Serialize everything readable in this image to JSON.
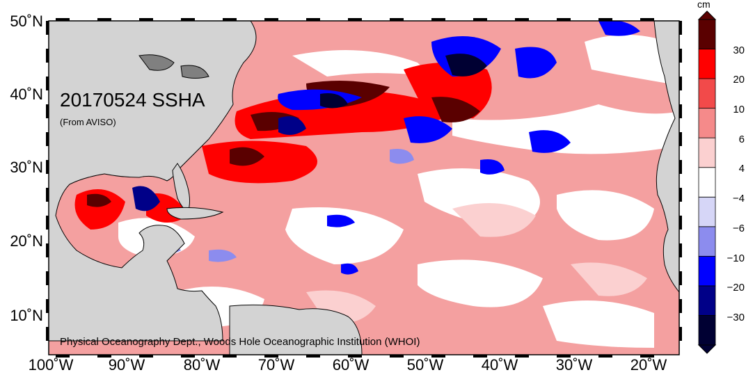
{
  "map": {
    "title": "20170524 SSHA",
    "subtitle": "(From AVISO)",
    "credit": "Physical Oceanography Dept., Woods Hole Oceanographic Institution (WHOI)",
    "lat_labels": [
      "50˚N",
      "40˚N",
      "30˚N",
      "20˚N",
      "10˚N"
    ],
    "lon_labels": [
      "100˚W",
      "90˚W",
      "80˚W",
      "70˚W",
      "60˚W",
      "50˚W",
      "40˚W",
      "30˚W",
      "20˚W"
    ]
  },
  "colorbar": {
    "unit": "cm",
    "labels": [
      "30",
      "20",
      "10",
      "6",
      "4",
      "−4",
      "−6",
      "−10",
      "−20",
      "−30"
    ],
    "colors": [
      "#5a0000",
      "#ff0000",
      "#f24a4a",
      "#f58a8a",
      "#fbd0d0",
      "#ffffff",
      "#d6d6f7",
      "#8c8cee",
      "#0000ff",
      "#000088",
      "#000033"
    ],
    "land_color": "#d3d3d3"
  }
}
